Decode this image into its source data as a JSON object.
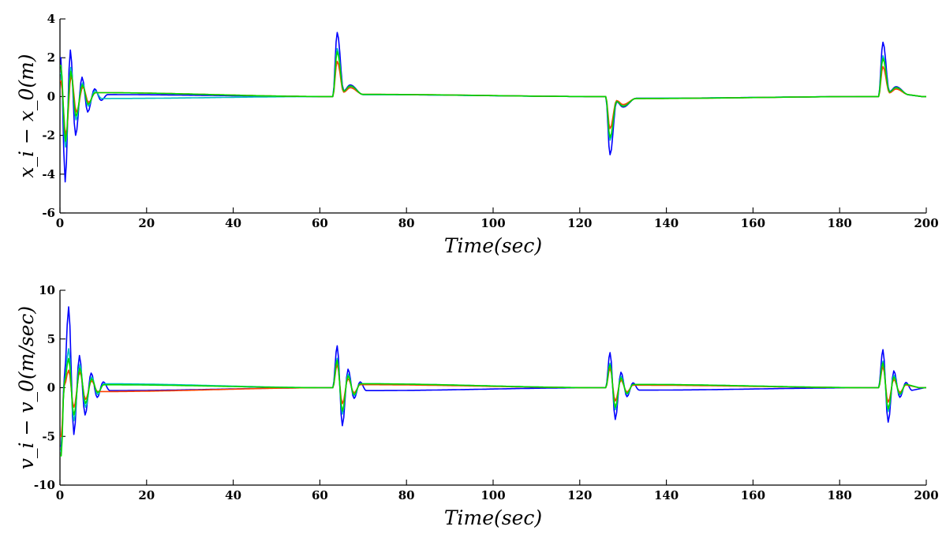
{
  "chart_data": [
    {
      "type": "line",
      "title": "",
      "xlabel": "Time(sec)",
      "ylabel": "x_i − x_0(m)",
      "xlim": [
        0,
        200
      ],
      "ylim": [
        -6,
        4
      ],
      "xticks": [
        0,
        20,
        40,
        60,
        80,
        100,
        120,
        140,
        160,
        180,
        200
      ],
      "yticks": [
        -6,
        -4,
        -2,
        0,
        2,
        4
      ],
      "grid": false,
      "events": [
        {
          "t": 0,
          "amplitude": 1.0
        },
        {
          "t": 63,
          "amplitude": 3.3
        },
        {
          "t": 126,
          "amplitude": -3.0
        },
        {
          "t": 189,
          "amplitude": 2.8
        }
      ],
      "series": [
        {
          "color": "#0000ff",
          "scale": 1.0,
          "initial_peaks": [
            [
              0.2,
              2.0
            ],
            [
              1.2,
              -4.4
            ],
            [
              2.4,
              2.4
            ],
            [
              3.6,
              -2.0
            ],
            [
              5.1,
              1.0
            ],
            [
              6.4,
              -0.8
            ],
            [
              8.0,
              0.4
            ],
            [
              9.5,
              -0.2
            ],
            [
              11.0,
              0.1
            ]
          ],
          "event_peaks": [
            [
              64.0,
              3.3
            ],
            [
              65.5,
              0.3
            ],
            [
              67.0,
              0.6
            ],
            [
              70.0,
              0.1
            ]
          ]
        },
        {
          "color": "#00bfbf",
          "scale": 0.75,
          "initial_peaks": [
            [
              0.2,
              1.2
            ],
            [
              1.3,
              -2.6
            ],
            [
              2.5,
              1.5
            ],
            [
              3.7,
              -1.2
            ],
            [
              5.2,
              0.7
            ],
            [
              6.5,
              -0.5
            ],
            [
              8.1,
              0.3
            ],
            [
              9.6,
              -0.1
            ]
          ],
          "event_peaks": [
            [
              64.0,
              2.4
            ],
            [
              65.5,
              0.25
            ],
            [
              67.0,
              0.5
            ],
            [
              70.0,
              0.1
            ]
          ]
        },
        {
          "color": "#ff4000",
          "scale": 0.55,
          "initial_peaks": [
            [
              0.2,
              0.8
            ],
            [
              1.4,
              -2.0
            ],
            [
              2.6,
              1.1
            ],
            [
              3.8,
              -0.8
            ],
            [
              5.3,
              0.5
            ],
            [
              6.6,
              -0.3
            ],
            [
              8.2,
              0.2
            ]
          ],
          "event_peaks": [
            [
              64.0,
              1.6
            ],
            [
              65.5,
              0.2
            ],
            [
              67.0,
              0.4
            ],
            [
              70.0,
              0.1
            ]
          ]
        },
        {
          "color": "#00d800",
          "scale": 0.7,
          "initial_peaks": [
            [
              0.2,
              1.6
            ],
            [
              1.3,
              -2.3
            ],
            [
              2.5,
              1.3
            ],
            [
              3.7,
              -1.0
            ],
            [
              5.2,
              0.6
            ],
            [
              6.5,
              -0.4
            ],
            [
              8.1,
              0.2
            ]
          ],
          "event_peaks": [
            [
              64.0,
              2.1
            ],
            [
              65.5,
              0.25
            ],
            [
              67.0,
              0.5
            ],
            [
              70.0,
              0.1
            ]
          ]
        }
      ]
    },
    {
      "type": "line",
      "title": "",
      "xlabel": "Time(sec)",
      "ylabel": "v_i − v_0(m/sec)",
      "xlim": [
        0,
        200
      ],
      "ylim": [
        -10,
        10
      ],
      "xticks": [
        0,
        20,
        40,
        60,
        80,
        100,
        120,
        140,
        160,
        180,
        200
      ],
      "yticks": [
        -10,
        -5,
        0,
        5,
        10
      ],
      "grid": false,
      "events": [
        {
          "t": 63,
          "amplitude": 4.3
        },
        {
          "t": 126,
          "amplitude": 3.6
        },
        {
          "t": 189,
          "amplitude": 3.9
        }
      ],
      "series": [
        {
          "color": "#0000ff",
          "scale": 1.0,
          "initial_peaks": [
            [
              0.3,
              -6.0
            ],
            [
              1.0,
              1.0
            ],
            [
              2.0,
              8.3
            ],
            [
              3.2,
              -4.8
            ],
            [
              4.5,
              3.3
            ],
            [
              5.8,
              -2.8
            ],
            [
              7.2,
              1.5
            ],
            [
              8.6,
              -1.0
            ],
            [
              10.0,
              0.6
            ],
            [
              11.5,
              -0.3
            ]
          ],
          "event_peaks": [
            [
              63.5,
              4.3
            ],
            [
              64.7,
              -3.9
            ],
            [
              66.0,
              1.9
            ],
            [
              67.4,
              -1.1
            ],
            [
              68.8,
              0.6
            ],
            [
              70.2,
              -0.3
            ]
          ]
        },
        {
          "color": "#00bfbf",
          "scale": 0.7,
          "initial_peaks": [
            [
              0.3,
              -6.5
            ],
            [
              1.0,
              0.5
            ],
            [
              2.0,
              4.0
            ],
            [
              3.2,
              -3.4
            ],
            [
              4.6,
              2.4
            ],
            [
              5.9,
              -2.0
            ],
            [
              7.3,
              1.1
            ],
            [
              8.7,
              -0.7
            ],
            [
              10.1,
              0.4
            ]
          ],
          "event_peaks": [
            [
              63.5,
              3.0
            ],
            [
              64.7,
              -2.7
            ],
            [
              66.0,
              1.4
            ],
            [
              67.4,
              -0.8
            ],
            [
              68.8,
              0.4
            ]
          ]
        },
        {
          "color": "#ff4000",
          "scale": 0.55,
          "initial_peaks": [
            [
              0.3,
              -5.0
            ],
            [
              1.0,
              0.2
            ],
            [
              2.0,
              1.8
            ],
            [
              3.2,
              -2.0
            ],
            [
              4.6,
              1.6
            ],
            [
              5.9,
              -1.2
            ],
            [
              7.3,
              0.7
            ],
            [
              8.7,
              -0.4
            ]
          ],
          "event_peaks": [
            [
              63.5,
              2.3
            ],
            [
              64.7,
              -1.6
            ],
            [
              66.0,
              0.9
            ],
            [
              67.4,
              -0.5
            ],
            [
              68.8,
              0.3
            ]
          ]
        },
        {
          "color": "#00d800",
          "scale": 0.65,
          "initial_peaks": [
            [
              0.3,
              -7.0
            ],
            [
              1.0,
              0.5
            ],
            [
              2.0,
              3.0
            ],
            [
              3.2,
              -2.8
            ],
            [
              4.6,
              2.0
            ],
            [
              5.9,
              -1.6
            ],
            [
              7.3,
              0.9
            ],
            [
              8.7,
              -0.5
            ],
            [
              10.1,
              0.3
            ]
          ],
          "event_peaks": [
            [
              63.5,
              2.8
            ],
            [
              64.7,
              -2.4
            ],
            [
              66.0,
              1.2
            ],
            [
              67.4,
              -0.7
            ],
            [
              68.8,
              0.4
            ]
          ]
        }
      ]
    }
  ]
}
